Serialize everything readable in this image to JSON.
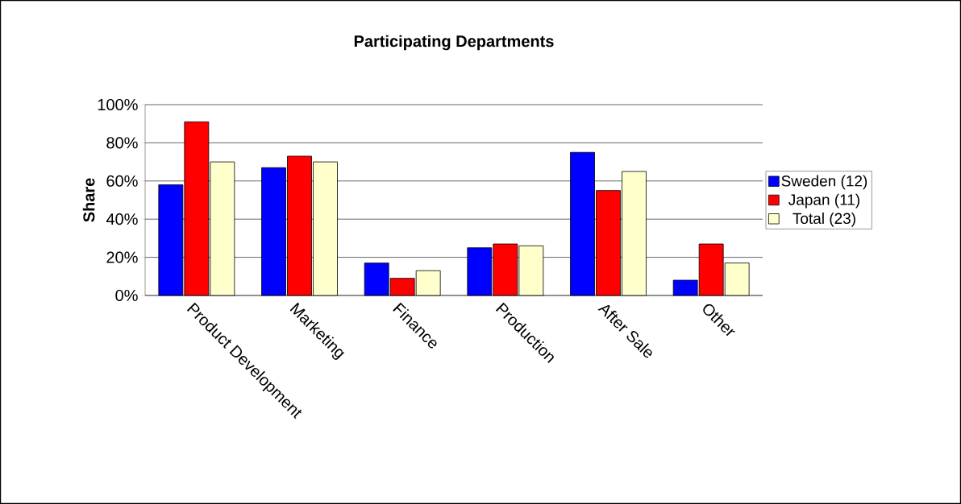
{
  "chart_data": {
    "type": "bar",
    "title": "Participating Departments",
    "ylabel": "Share",
    "categories": [
      "Product Development",
      "Marketing",
      "Finance",
      "Production",
      "After Sale",
      "Other"
    ],
    "series": [
      {
        "name": "Sweden (12)",
        "color": "#0000ff",
        "values": [
          58,
          67,
          17,
          25,
          75,
          8
        ]
      },
      {
        "name": "Japan (11)",
        "color": "#ff0000",
        "values": [
          91,
          73,
          9,
          27,
          55,
          27
        ]
      },
      {
        "name": "Total (23)",
        "color": "#ffffcc",
        "values": [
          70,
          70,
          13,
          26,
          65,
          17
        ]
      }
    ],
    "ylim": [
      0,
      100
    ],
    "yticks": [
      {
        "value": 0,
        "label": "0%"
      },
      {
        "value": 20,
        "label": "20%"
      },
      {
        "value": 40,
        "label": "40%"
      },
      {
        "value": 60,
        "label": "60%"
      },
      {
        "value": 80,
        "label": "80%"
      },
      {
        "value": 100,
        "label": "100%"
      }
    ],
    "grid": "y",
    "legend": "right"
  }
}
